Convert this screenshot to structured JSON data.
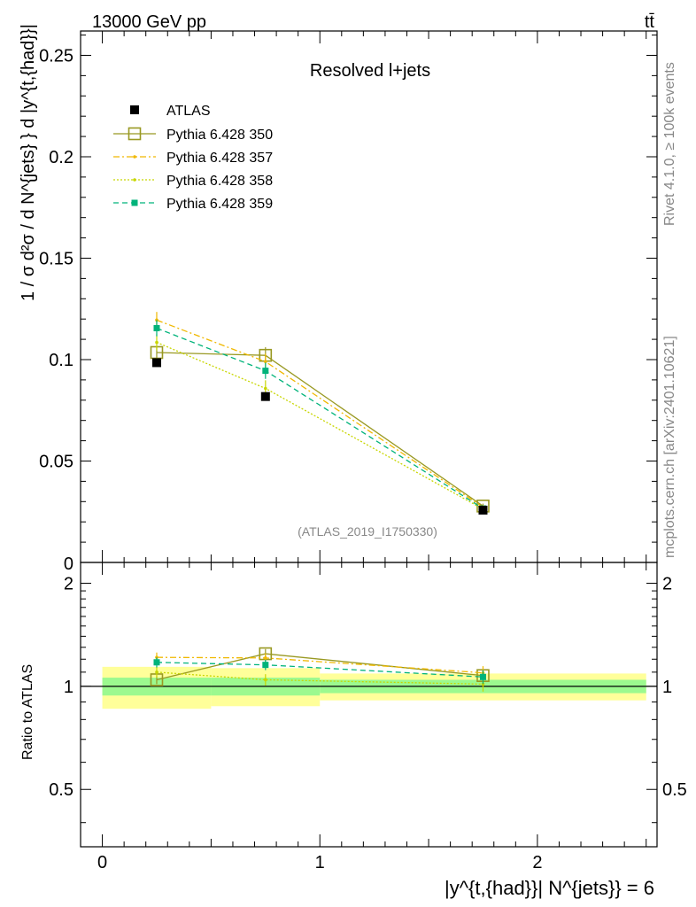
{
  "header": {
    "energy_label": "13000 GeV pp",
    "process_label": "tt̄",
    "plot_title": "Resolved l+jets",
    "analysis_id": "(ATLAS_2019_I1750330)"
  },
  "side_text": {
    "rivet": "Rivet 4.1.0, ≥ 100k events",
    "source": "mcplots.cern.ch [arXiv:2401.10621]"
  },
  "axes": {
    "top_ylabel": "1 / σ d²σ / d N^{jets} } d |y^{t,{had}}|",
    "bottom_ylabel": "Ratio to ATLAS",
    "xlabel": "|y^{t,{had}}| N^{jets}} = 6"
  },
  "legend": [
    {
      "label": "ATLAS",
      "color": "#000000"
    },
    {
      "label": "Pythia 6.428 350",
      "color": "#999922"
    },
    {
      "label": "Pythia 6.428 357",
      "color": "#f0b800"
    },
    {
      "label": "Pythia 6.428 358",
      "color": "#c8d600"
    },
    {
      "label": "Pythia 6.428 359",
      "color": "#00b37a"
    }
  ],
  "colors": {
    "band_inner": "#9cf98f",
    "band_outer": "#ffff9a"
  },
  "chart_data": [
    {
      "type": "scatter",
      "panel": "main",
      "xlim": [
        -0.1,
        2.55
      ],
      "ylim": [
        0,
        0.262
      ],
      "yticks": [
        0.05,
        0.1,
        0.15,
        0.2,
        0.25
      ],
      "ytick_labels": [
        "0.05",
        "0.1",
        "0.15",
        "0.2",
        "0.25"
      ],
      "ylim_label": "0",
      "xticks": [
        0,
        1,
        2
      ],
      "xtick_labels": [
        "0",
        "1",
        "2"
      ],
      "data": {
        "x": [
          0.25,
          0.75,
          1.75
        ],
        "y": [
          0.0985,
          0.0818,
          0.0258
        ],
        "xerr": [
          0.25,
          0.25,
          0.75
        ]
      },
      "series": [
        {
          "name": "Pythia 6.428 350",
          "x": [
            0.25,
            0.75,
            1.75
          ],
          "y": [
            0.1035,
            0.1021,
            0.0278
          ],
          "yerr": [
            0.003,
            0.004,
            0.0012
          ]
        },
        {
          "name": "Pythia 6.428 357",
          "x": [
            0.25,
            0.75,
            1.75
          ],
          "y": [
            0.1195,
            0.099,
            0.0272
          ],
          "yerr": [
            0.004,
            0.004,
            0.0012
          ]
        },
        {
          "name": "Pythia 6.428 358",
          "x": [
            0.25,
            0.75,
            1.75
          ],
          "y": [
            0.1085,
            0.0858,
            0.0263
          ],
          "yerr": [
            0.004,
            0.004,
            0.0012
          ]
        },
        {
          "name": "Pythia 6.428 359",
          "x": [
            0.25,
            0.75,
            1.75
          ],
          "y": [
            0.1155,
            0.0945,
            0.0266
          ],
          "yerr": [
            0.004,
            0.004,
            0.0012
          ]
        }
      ]
    },
    {
      "type": "scatter",
      "panel": "ratio",
      "xlim": [
        -0.1,
        2.55
      ],
      "ylim": [
        0.34,
        2.3
      ],
      "yticks": [
        0.5,
        1,
        2
      ],
      "ytick_labels": [
        "0.5",
        "1",
        "2"
      ],
      "xticks": [
        0,
        1,
        2
      ],
      "xtick_labels": [
        "0",
        "1",
        "2"
      ],
      "bands": [
        {
          "x": [
            0,
            0.5
          ],
          "inner": [
            0.94,
            1.06
          ],
          "outer": [
            0.86,
            1.14
          ]
        },
        {
          "x": [
            0.5,
            1.0
          ],
          "inner": [
            0.94,
            1.06
          ],
          "outer": [
            0.875,
            1.13
          ]
        },
        {
          "x": [
            1.0,
            2.5
          ],
          "inner": [
            0.955,
            1.045
          ],
          "outer": [
            0.91,
            1.09
          ]
        }
      ],
      "series": [
        {
          "name": "Pythia 6.428 350",
          "x": [
            0.25,
            0.75,
            1.75
          ],
          "y": [
            1.045,
            1.245,
            1.075
          ],
          "yerr": [
            0.03,
            0.04,
            0.04
          ]
        },
        {
          "name": "Pythia 6.428 357",
          "x": [
            0.25,
            0.75,
            1.75
          ],
          "y": [
            1.215,
            1.21,
            1.095
          ],
          "yerr": [
            0.04,
            0.04,
            0.05
          ]
        },
        {
          "name": "Pythia 6.428 358",
          "x": [
            0.25,
            0.75,
            1.75
          ],
          "y": [
            1.1,
            1.045,
            1.015
          ],
          "yerr": [
            0.04,
            0.04,
            0.05
          ]
        },
        {
          "name": "Pythia 6.428 359",
          "x": [
            0.25,
            0.75,
            1.75
          ],
          "y": [
            1.175,
            1.155,
            1.065
          ],
          "yerr": [
            0.04,
            0.04,
            0.05
          ]
        }
      ]
    }
  ]
}
